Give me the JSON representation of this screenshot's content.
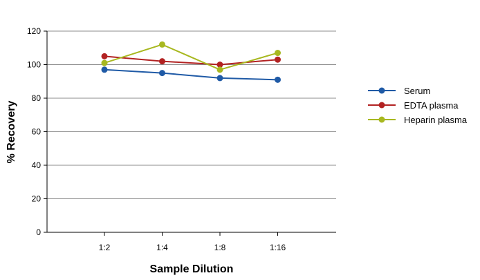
{
  "chart_data": {
    "type": "line",
    "title": "",
    "xlabel": "Sample Dilution",
    "ylabel": "% Recovery",
    "categories": [
      "1:2",
      "1:4",
      "1:8",
      "1:16"
    ],
    "ylim": [
      0,
      120
    ],
    "yticks": [
      "0",
      "20",
      "40",
      "60",
      "80",
      "100",
      "120"
    ],
    "grid": true,
    "legend_position": "right",
    "series": [
      {
        "name": "Serum",
        "color": "#1f5aa6",
        "values": [
          97,
          95,
          92,
          91
        ]
      },
      {
        "name": "EDTA plasma",
        "color": "#b22222",
        "values": [
          105,
          102,
          100,
          103
        ]
      },
      {
        "name": "Heparin plasma",
        "color": "#a8b820",
        "values": [
          101,
          112,
          97,
          107
        ]
      }
    ]
  }
}
